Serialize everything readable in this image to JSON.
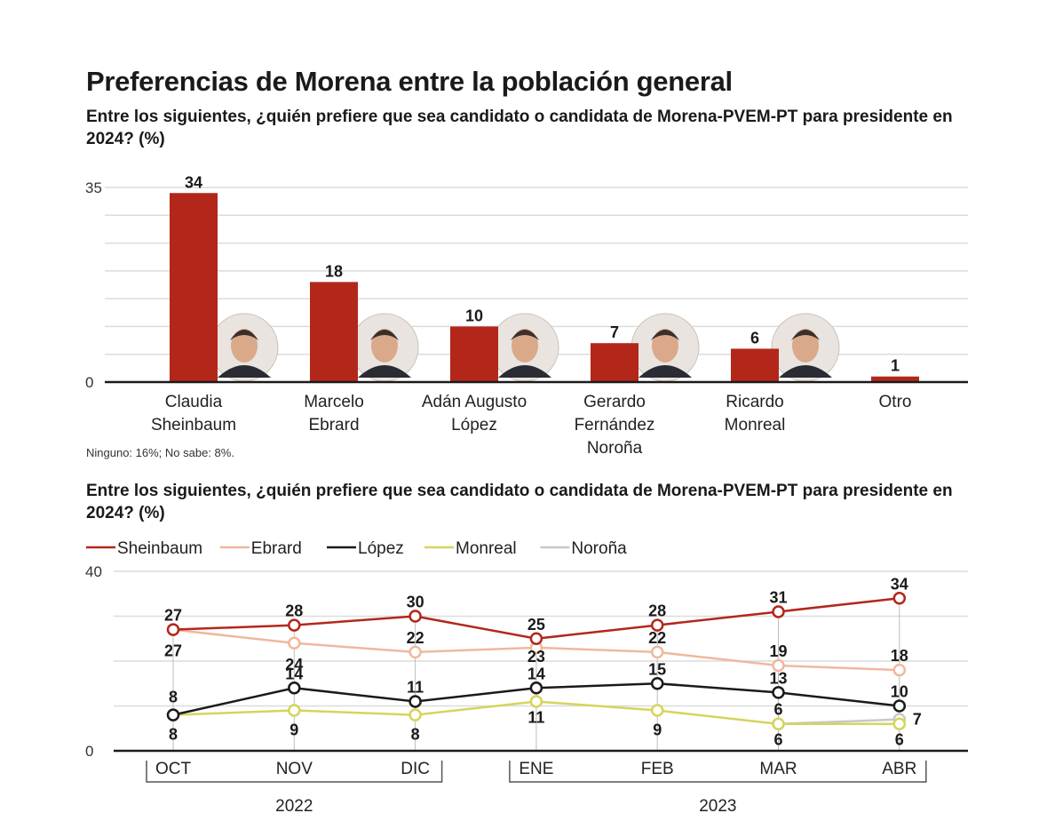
{
  "title": "Preferencias de Morena entre la población general",
  "subtitle_1": "Entre los siguientes, ¿quién prefiere que sea candidato o candidata de Morena-PVEM-PT para presidente en 2024? (%)",
  "subtitle_2": "Entre los siguientes, ¿quién prefiere que sea candidato o candidata de Morena-PVEM-PT para presidente en 2024? (%)",
  "footnote": "Ninguno: 16%; No sabe: 8%.",
  "colors": {
    "bar": "#b3271b",
    "sheinbaum": "#b3271b",
    "ebrard": "#f0b89d",
    "lopez": "#1a1a1a",
    "monreal": "#d6d45c",
    "norona": "#c8c8c8",
    "grid": "#dcdcdc"
  },
  "chart_data": [
    {
      "type": "bar",
      "categories": [
        [
          "Claudia",
          "Sheinbaum"
        ],
        [
          "Marcelo",
          "Ebrard"
        ],
        [
          "Adán Augusto",
          "López"
        ],
        [
          "Gerardo",
          "Fernández",
          "Noroña"
        ],
        [
          "Ricardo",
          "Monreal"
        ],
        [
          "Otro"
        ]
      ],
      "values": [
        34,
        18,
        10,
        7,
        6,
        1
      ],
      "portraits": [
        true,
        true,
        true,
        true,
        true,
        false
      ],
      "ylim": [
        0,
        35
      ],
      "ytick_labels": [
        "0",
        "35"
      ],
      "grid": true
    },
    {
      "type": "line",
      "x": [
        "OCT",
        "NOV",
        "DIC",
        "ENE",
        "FEB",
        "MAR",
        "ABR"
      ],
      "year_groups": [
        {
          "label": "2022",
          "months": [
            "OCT",
            "NOV",
            "DIC"
          ]
        },
        {
          "label": "2023",
          "months": [
            "ENE",
            "FEB",
            "MAR",
            "ABR"
          ]
        }
      ],
      "ylim": [
        0,
        40
      ],
      "ytick_labels": [
        "0",
        "40"
      ],
      "grid": true,
      "legend_position": "top-left",
      "series": [
        {
          "name": "Sheinbaum",
          "color_key": "sheinbaum",
          "values": [
            27,
            28,
            30,
            25,
            28,
            31,
            34
          ]
        },
        {
          "name": "Ebrard",
          "color_key": "ebrard",
          "values": [
            27,
            24,
            22,
            23,
            22,
            19,
            18
          ]
        },
        {
          "name": "López",
          "color_key": "lopez",
          "values": [
            8,
            14,
            11,
            14,
            15,
            13,
            10
          ]
        },
        {
          "name": "Monreal",
          "color_key": "monreal",
          "values": [
            8,
            9,
            8,
            11,
            9,
            6,
            6
          ]
        },
        {
          "name": "Noroña",
          "color_key": "norona",
          "values": [
            null,
            null,
            null,
            null,
            null,
            6,
            7
          ]
        }
      ],
      "data_labels": [
        [
          "27",
          "28",
          "30",
          "25",
          "28",
          "31",
          "34"
        ],
        [
          "27",
          "24",
          "22",
          "23",
          "22",
          "19",
          "18"
        ],
        [
          "8",
          "14",
          "11",
          "14",
          "15",
          "13",
          "10"
        ],
        [
          "8",
          "9",
          "8",
          "11",
          "9",
          "6",
          "6"
        ],
        [
          "",
          "",
          "",
          "",
          "",
          "6",
          "7"
        ]
      ]
    }
  ]
}
